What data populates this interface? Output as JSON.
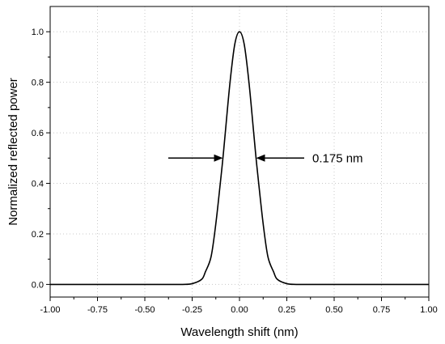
{
  "chart_data": {
    "type": "line",
    "title": "",
    "xlabel": "Wavelength shift (nm)",
    "ylabel": "Normalized reflected power",
    "xlim": [
      -1.0,
      1.0
    ],
    "ylim": [
      -0.05,
      1.1
    ],
    "x_ticks": [
      -1.0,
      -0.75,
      -0.5,
      -0.25,
      0.0,
      0.25,
      0.5,
      0.75,
      1.0
    ],
    "x_tick_labels": [
      "-1.00",
      "-0.75",
      "-0.50",
      "-0.25",
      "0.00",
      "0.25",
      "0.50",
      "0.75",
      "1.00"
    ],
    "y_ticks": [
      0.0,
      0.2,
      0.4,
      0.6,
      0.8,
      1.0
    ],
    "y_tick_labels": [
      "0.0",
      "0.2",
      "0.4",
      "0.6",
      "0.8",
      "1.0"
    ],
    "grid": true,
    "legend": "none",
    "series": [
      {
        "color": "#000000",
        "x": [
          -1.0,
          -0.4,
          -0.3,
          -0.25,
          -0.2,
          -0.18,
          -0.15,
          -0.125,
          -0.1,
          -0.0875,
          -0.075,
          -0.05,
          -0.025,
          0.0,
          0.025,
          0.05,
          0.075,
          0.0875,
          0.1,
          0.125,
          0.15,
          0.18,
          0.2,
          0.25,
          0.3,
          0.4,
          1.0
        ],
        "values": [
          0.0,
          0.0,
          0.0,
          0.003,
          0.02,
          0.05,
          0.11,
          0.24,
          0.41,
          0.5,
          0.6,
          0.8,
          0.95,
          1.0,
          0.95,
          0.8,
          0.6,
          0.5,
          0.41,
          0.24,
          0.11,
          0.05,
          0.02,
          0.003,
          0.0,
          0.0,
          0.0
        ]
      }
    ],
    "annotations": [
      {
        "text": "0.175 nm",
        "y": 0.5,
        "left_x": -0.0875,
        "right_x": 0.0875
      }
    ]
  }
}
